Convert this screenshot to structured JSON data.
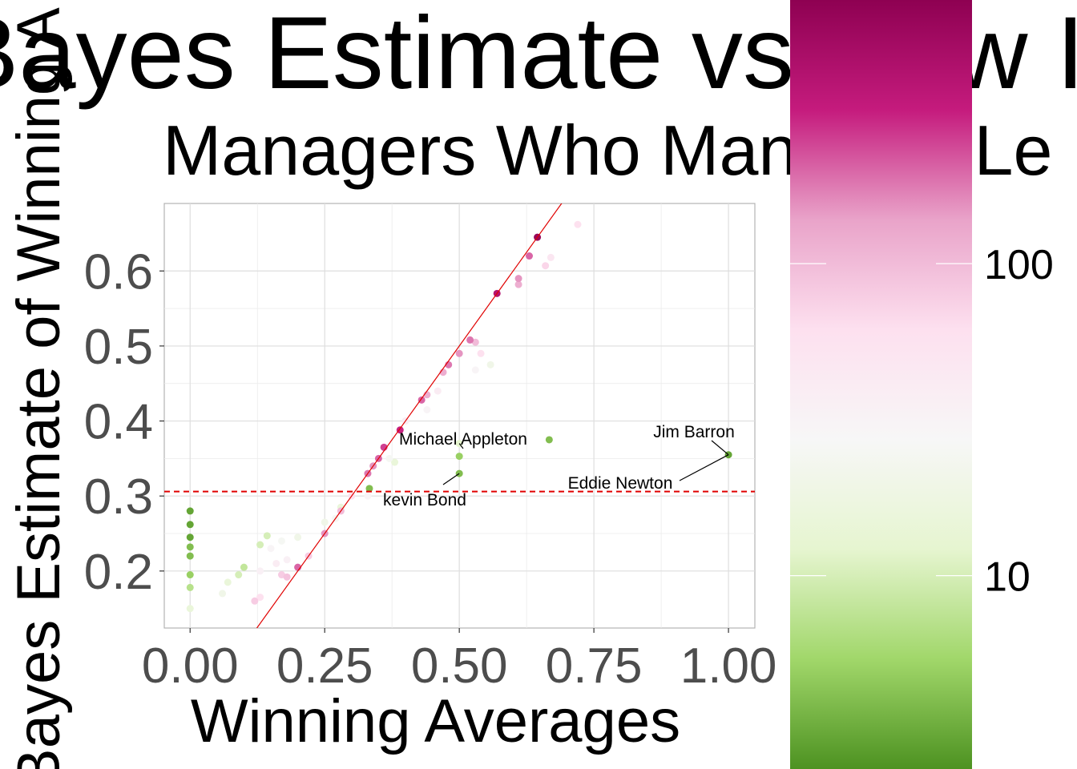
{
  "chart_data": {
    "type": "scatter",
    "title": "Bayes Estimate vs Raw I",
    "subtitle": "Managers Who Managed Le",
    "x_label": "Winning Averages",
    "y_label": "Bayes Estimate of Winning A",
    "xlim": [
      -0.048,
      1.049
    ],
    "ylim": [
      0.124,
      0.69
    ],
    "xticks": [
      {
        "value": 0,
        "label": "0.00"
      },
      {
        "value": 0.25,
        "label": "0.25"
      },
      {
        "value": 0.5,
        "label": "0.50"
      },
      {
        "value": 0.75,
        "label": "0.75"
      },
      {
        "value": 1,
        "label": "1.00"
      }
    ],
    "yticks": [
      0.2,
      0.3,
      0.4,
      0.5,
      0.6
    ],
    "grid": true,
    "abline": {
      "slope": 1,
      "intercept": 0,
      "color": "#e00000"
    },
    "hline": {
      "value": 0.306,
      "color": "#e00000"
    },
    "color_scale": {
      "log": true,
      "lim": [
        2.4,
        700
      ],
      "ticks": [
        10,
        100
      ],
      "colors": [
        "#4d9221",
        "#a1d76a",
        "#e6f5d0",
        "#f7f7f7",
        "#fde0ef",
        "#e9a3c9",
        "#c51b7d",
        "#8e0152"
      ]
    },
    "series": [
      {
        "x": [
          0,
          0,
          0,
          0,
          0,
          0,
          0,
          0,
          0.645,
          0.57,
          0.63,
          0.61,
          0.61,
          0.5,
          0.52,
          0.53,
          0.48,
          0.47,
          0.44,
          0.43,
          0.39,
          0.36,
          0.35,
          0.34,
          0.33,
          0.3,
          0.28,
          0.25,
          0.22,
          0.2,
          0.72,
          0.67,
          0.66,
          0.54,
          0.53,
          0.558,
          0.5,
          0.5,
          0.5,
          0.667,
          1.0,
          0.333,
          0.38,
          0.13,
          0.143,
          0.1,
          0.09,
          0.07,
          0.06,
          0.2,
          0.17,
          0.15,
          0.18,
          0.16,
          0.13,
          0.13,
          0.12,
          0.17,
          0.18,
          0.25,
          0.28,
          0.27,
          0.4,
          0.44,
          0.46,
          0.33,
          0.37
        ],
        "y": [
          0.28,
          0.262,
          0.245,
          0.232,
          0.22,
          0.195,
          0.178,
          0.15,
          0.645,
          0.57,
          0.62,
          0.59,
          0.582,
          0.49,
          0.508,
          0.505,
          0.475,
          0.465,
          0.435,
          0.428,
          0.388,
          0.365,
          0.35,
          0.34,
          0.33,
          0.3,
          0.28,
          0.25,
          0.22,
          0.205,
          0.662,
          0.618,
          0.607,
          0.49,
          0.468,
          0.475,
          0.37,
          0.353,
          0.33,
          0.375,
          0.355,
          0.31,
          0.345,
          0.235,
          0.247,
          0.205,
          0.195,
          0.185,
          0.17,
          0.245,
          0.24,
          0.23,
          0.215,
          0.21,
          0.2,
          0.165,
          0.16,
          0.195,
          0.192,
          0.265,
          0.285,
          0.27,
          0.4,
          0.415,
          0.44,
          0.3,
          0.35
        ],
        "n": [
          3,
          3,
          3,
          4,
          4,
          5,
          7,
          15,
          600,
          400,
          200,
          150,
          120,
          150,
          180,
          100,
          180,
          120,
          120,
          200,
          300,
          250,
          200,
          150,
          180,
          60,
          100,
          150,
          80,
          200,
          60,
          50,
          70,
          60,
          30,
          20,
          12,
          5,
          4,
          4,
          3,
          4,
          15,
          10,
          10,
          8,
          10,
          15,
          20,
          20,
          25,
          30,
          35,
          40,
          35,
          60,
          80,
          80,
          90,
          20,
          15,
          25,
          40,
          30,
          40,
          30,
          25
        ]
      }
    ],
    "annotations": [
      "Michael Appleton",
      "Jim Barron",
      "Eddie Newton",
      "kevin Bond"
    ]
  }
}
